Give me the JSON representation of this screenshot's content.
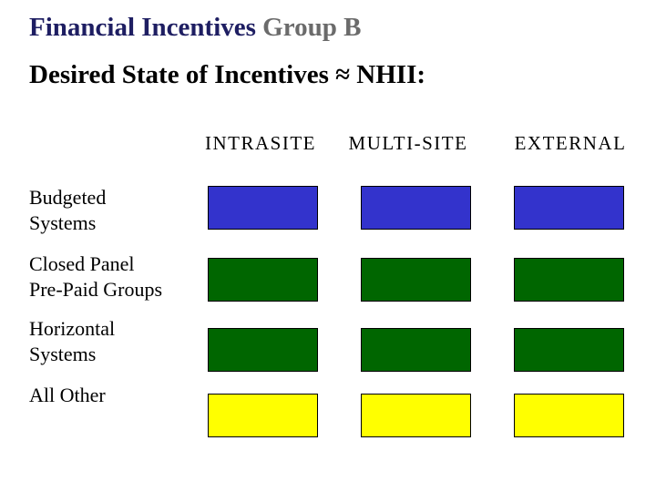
{
  "title": {
    "part1": "Financial Incentives ",
    "part2": "Group B",
    "part1_color": "#1e1e62",
    "part2_color": "#6b6b6b"
  },
  "subtitle": "Desired State of Incentives ≈ NHII:",
  "palette": {
    "blue": "#3333CC",
    "green": "#006600",
    "yellow": "#FFFF00",
    "cell_border": "#000000"
  },
  "chart_data": {
    "type": "heatmap",
    "title": "Financial Incentives Group B",
    "subtitle": "Desired State of Incentives ≈ NHII",
    "columns": [
      "INTRASITE",
      "MULTI-SITE",
      "EXTERNAL"
    ],
    "rows": [
      {
        "label": "Budgeted\nSystems",
        "values": [
          "blue",
          "blue",
          "blue"
        ],
        "colors": [
          "#3333CC",
          "#3333CC",
          "#3333CC"
        ]
      },
      {
        "label": "Closed Panel\nPre-Paid Groups",
        "values": [
          "green",
          "green",
          "green"
        ],
        "colors": [
          "#006600",
          "#006600",
          "#006600"
        ]
      },
      {
        "label": "Horizontal\nSystems",
        "values": [
          "green",
          "green",
          "green"
        ],
        "colors": [
          "#006600",
          "#006600",
          "#006600"
        ]
      },
      {
        "label": "All Other",
        "values": [
          "yellow",
          "yellow",
          "yellow"
        ],
        "colors": [
          "#FFFF00",
          "#FFFF00",
          "#FFFF00"
        ]
      }
    ],
    "layout": {
      "grid": false,
      "legend": false,
      "row_labels_position": "left",
      "column_labels_position": "top"
    }
  }
}
